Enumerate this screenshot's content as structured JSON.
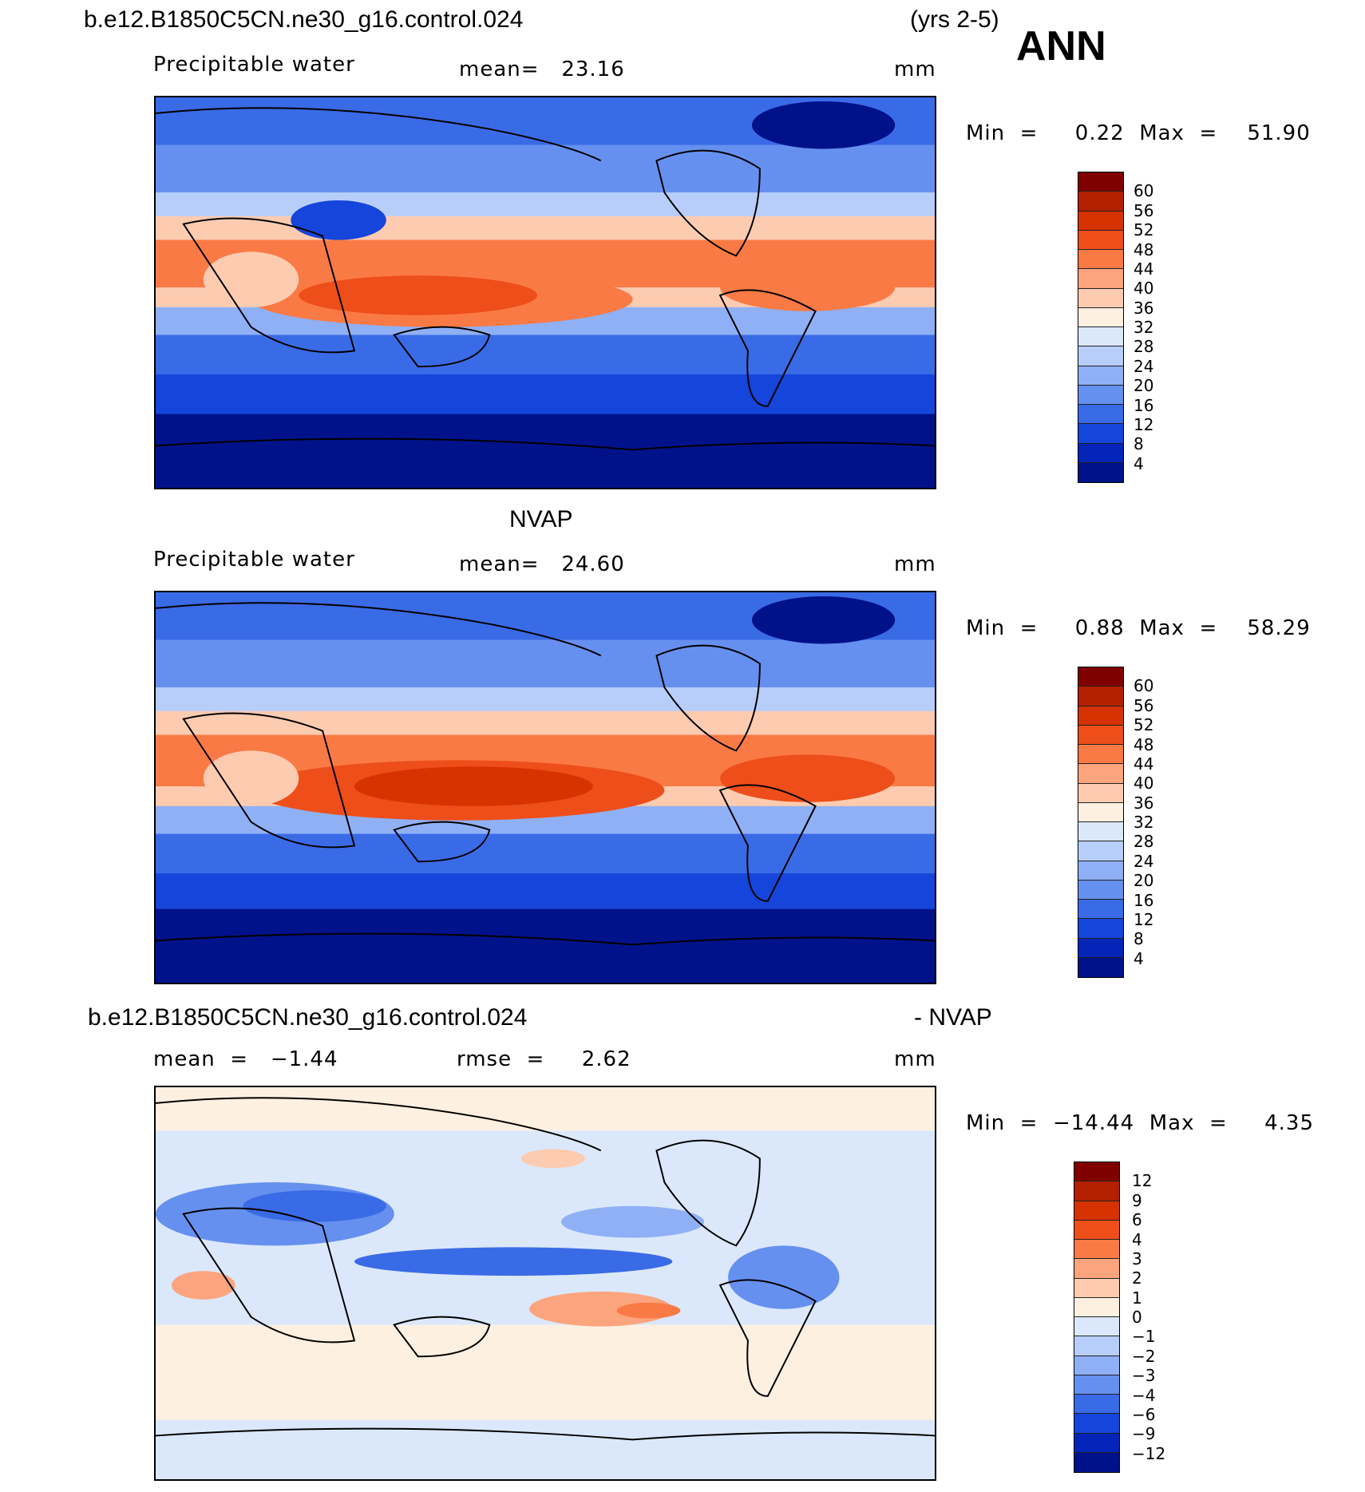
{
  "header": {
    "case_name": "b.e12.B1850C5CN.ne30_g16.control.024",
    "years": "(yrs 2-5)",
    "season": "ANN"
  },
  "panels": [
    {
      "id": "model",
      "title": "",
      "variable": "Precipitable water",
      "stat_text": "mean=   23.16",
      "units": "mm",
      "minmax": "Min  =     0.22  Max  =    51.90",
      "colorbar_labels": [
        "60",
        "56",
        "52",
        "48",
        "44",
        "40",
        "36",
        "32",
        "28",
        "24",
        "20",
        "16",
        "12",
        "8",
        "4"
      ],
      "colors": [
        "#800000",
        "#b22000",
        "#d63300",
        "#ee4e1a",
        "#fa7a45",
        "#fca47e",
        "#fdcbb0",
        "#fdf0e1",
        "#dbe8fb",
        "#b7cefa",
        "#8fb0f5",
        "#6690ef",
        "#3a6be6",
        "#1545da",
        "#0524b8",
        "#00128a"
      ]
    },
    {
      "id": "obs",
      "title": "NVAP",
      "variable": "Precipitable water",
      "stat_text": "mean=   24.60",
      "units": "mm",
      "minmax": "Min  =     0.88  Max  =    58.29",
      "colorbar_labels": [
        "60",
        "56",
        "52",
        "48",
        "44",
        "40",
        "36",
        "32",
        "28",
        "24",
        "20",
        "16",
        "12",
        "8",
        "4"
      ],
      "colors": [
        "#800000",
        "#b22000",
        "#d63300",
        "#ee4e1a",
        "#fa7a45",
        "#fca47e",
        "#fdcbb0",
        "#fdf0e1",
        "#dbe8fb",
        "#b7cefa",
        "#8fb0f5",
        "#6690ef",
        "#3a6be6",
        "#1545da",
        "#0524b8",
        "#00128a"
      ]
    },
    {
      "id": "diff",
      "title_left": "b.e12.B1850C5CN.ne30_g16.control.024",
      "title_right": "- NVAP",
      "stat_left": "mean  =   −1.44",
      "stat_mid": "rmse  =     2.62",
      "units": "mm",
      "minmax": "Min  =  −14.44  Max  =     4.35",
      "colorbar_labels": [
        "12",
        "9",
        "6",
        "4",
        "3",
        "2",
        "1",
        "0",
        "−1",
        "−2",
        "−3",
        "−4",
        "−6",
        "−9",
        "−12"
      ],
      "colors": [
        "#800000",
        "#b22000",
        "#d63300",
        "#ee4e1a",
        "#fa7a45",
        "#fca47e",
        "#fdcbb0",
        "#fdf0e1",
        "#dbe8fb",
        "#b7cefa",
        "#8fb0f5",
        "#6690ef",
        "#3a6be6",
        "#1545da",
        "#0524b8",
        "#00128a"
      ]
    }
  ]
}
